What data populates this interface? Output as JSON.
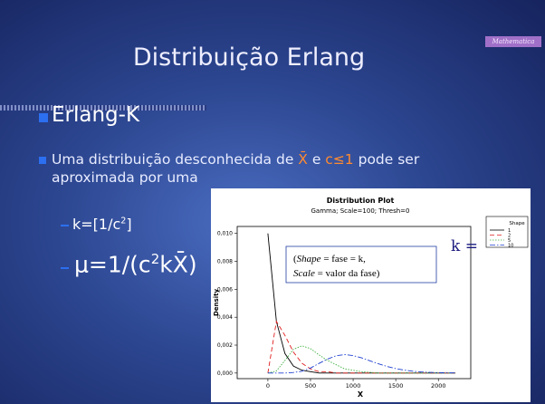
{
  "slide": {
    "title": "Distribuição Erlang",
    "tag": "Mathematica",
    "bullet1": "Erlang-K",
    "bullet2": [
      "Uma distribuição desconhecida de ",
      "X̄",
      " e ",
      "c≤1",
      " pode ser aproximada por uma"
    ],
    "sub1": [
      "k=[1/c",
      "2",
      "]"
    ],
    "sub2": [
      "μ=1/(c",
      "2",
      "kX̄)"
    ],
    "side_note": "k ="
  },
  "chart_data": {
    "type": "line",
    "title": "Distribution Plot",
    "subtitle": "Gamma; Scale=100; Thresh=0",
    "xlabel": "X",
    "ylabel": "Density",
    "legend_title": "Shape",
    "annotation": [
      [
        "(",
        "Shape",
        " = fase = k,"
      ],
      [
        "Scale",
        " = valor da fase)"
      ]
    ],
    "x": [
      0,
      100,
      200,
      300,
      400,
      500,
      600,
      700,
      800,
      900,
      1000,
      1100,
      1200,
      1300,
      1400,
      1500,
      1600,
      1700,
      1800,
      1900,
      2000,
      2100,
      2200
    ],
    "series": [
      {
        "name": "1",
        "color": "#000000",
        "dash": "solid",
        "values": [
          0.01,
          0.0037,
          0.0014,
          0.0005,
          0.0002,
          0.0001,
          0,
          0,
          0,
          0,
          0,
          0,
          0,
          0,
          0,
          0,
          0,
          0,
          0,
          0,
          0,
          0,
          0
        ]
      },
      {
        "name": "2",
        "color": "#e02020",
        "dash": "dashed",
        "values": [
          0,
          0.0037,
          0.0027,
          0.0015,
          0.0007,
          0.0003,
          0.0001,
          0.0001,
          0,
          0,
          0,
          0,
          0,
          0,
          0,
          0,
          0,
          0,
          0,
          0,
          0,
          0,
          0
        ]
      },
      {
        "name": "5",
        "color": "#40b040",
        "dash": "dotted",
        "values": [
          0,
          0.00015,
          0.0009,
          0.0017,
          0.00195,
          0.00175,
          0.0013,
          0.0009,
          0.0006,
          0.0003,
          0.0002,
          0.0001,
          5e-05,
          0,
          0,
          0,
          0,
          0,
          0,
          0,
          0,
          0,
          0
        ]
      },
      {
        "name": "10",
        "color": "#2040d0",
        "dash": "dashdot",
        "values": [
          0,
          0,
          0,
          4e-05,
          0.00013,
          0.00036,
          0.00069,
          0.001,
          0.00124,
          0.00132,
          0.00125,
          0.00109,
          0.00087,
          0.00066,
          0.00047,
          0.00032,
          0.00021,
          0.00013,
          8e-05,
          5e-05,
          3e-05,
          2e-05,
          1e-05
        ]
      }
    ],
    "xlim": [
      -360,
      2380
    ],
    "ylim": [
      -0.0004,
      0.0105
    ],
    "xticks": [
      0,
      500,
      1000,
      1500,
      2000
    ],
    "yticks": [
      {
        "value": 0,
        "label": "0,000"
      },
      {
        "value": 0.002,
        "label": "0,002"
      },
      {
        "value": 0.004,
        "label": "0,004"
      },
      {
        "value": 0.006,
        "label": "0,006"
      },
      {
        "value": 0.008,
        "label": "0,008"
      },
      {
        "value": 0.01,
        "label": "0,010"
      }
    ]
  }
}
